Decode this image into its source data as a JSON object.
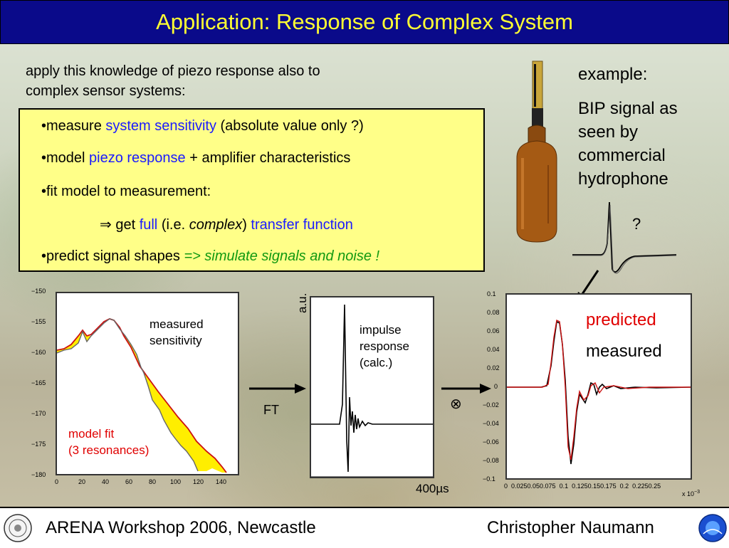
{
  "title": "Application: Response of Complex System",
  "intro": [
    "apply this knowledge of piezo response also to",
    "complex sensor systems:"
  ],
  "bullets": {
    "b1": {
      "pre": "•measure ",
      "hl": "system sensitivity",
      "post": " (absolute value only ?)"
    },
    "b2": {
      "pre": "•model ",
      "hl": "piezo response",
      "post": " + amplifier characteristics"
    },
    "b3": "•fit model to measurement:",
    "b4": {
      "arrow": "⇒",
      "get": " get ",
      "full": "full",
      "ie": " (i.e. ",
      "complex": "complex",
      "close": ") ",
      "tf": "transfer function"
    },
    "b5": {
      "pre": "•predict signal shapes ",
      "hl": "=> simulate signals and noise !"
    }
  },
  "example": {
    "label": "example:",
    "lines": [
      "BIP signal as",
      "seen by",
      "commercial",
      "hydrophone"
    ]
  },
  "question": "?",
  "left_chart": {
    "y_ticks": [
      "−150",
      "−155",
      "−160",
      "−165",
      "−170",
      "−175",
      "−180"
    ],
    "x_ticks": [
      "0",
      "20",
      "40",
      "60",
      "80",
      "100",
      "120",
      "140"
    ],
    "measured_label": [
      "measured",
      "sensitivity"
    ],
    "fit_label": [
      "model fit",
      "(3 resonances)"
    ]
  },
  "middle_chart": {
    "ylabel": "a.u.",
    "label": [
      "impulse",
      "response",
      "(calc.)"
    ],
    "time_label": "400µs"
  },
  "ft_label": "FT",
  "convolve": "⊗",
  "right_chart": {
    "y_ticks": [
      "0.1",
      "0.08",
      "0.06",
      "0.04",
      "0.02",
      "0",
      "−0.02",
      "−0.04",
      "−0.06",
      "−0.08",
      "−0.1"
    ],
    "x_ticks": "0  0.0250.050.075  0.1  0.1250.150.175  0.2  0.2250.25",
    "exponent": "x 10",
    "exponent_power": "−3",
    "predicted": "predicted",
    "measured": "measured"
  },
  "footer": {
    "left": "ARENA Workshop 2006, Newcastle",
    "right": "Christopher Naumann"
  },
  "colors": {
    "title_bg": "#0a0a8a",
    "title_text": "#ffff33",
    "box_bg": "#ffff88",
    "highlight_blue": "#1a1aff",
    "highlight_green": "#119911",
    "predicted_red": "#e00000"
  }
}
